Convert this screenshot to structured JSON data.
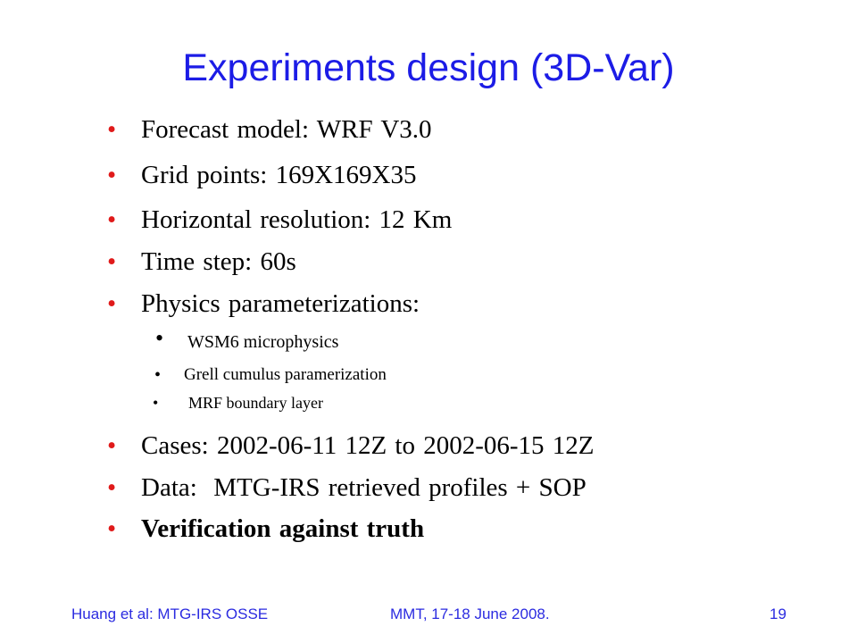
{
  "slide": {
    "title": "Experiments design (3D-Var)",
    "bullets": [
      {
        "text": "Forecast model: WRF V3.0"
      },
      {
        "text": "Grid points: 169X169X35"
      },
      {
        "text": "Horizontal resolution: 12 Km"
      },
      {
        "text": "Time step: 60s"
      },
      {
        "text": "Physics parameterizations:"
      }
    ],
    "sub_bullets": [
      {
        "text": "WSM6 microphysics"
      },
      {
        "text": "Grell cumulus paramerization"
      },
      {
        "text": "MRF boundary layer"
      }
    ],
    "bullets_after": [
      {
        "text": "Cases: 2002-06-11 12Z to 2002-06-15 12Z"
      },
      {
        "text": "Data:  MTG-IRS retrieved profiles + SOP"
      },
      {
        "text": "Verification against truth"
      }
    ],
    "bullet_glyph": "•"
  },
  "footer": {
    "left": "Huang et al: MTG-IRS OSSE",
    "center": "MMT, 17-18 June 2008.",
    "page_number": "19"
  },
  "colors": {
    "title": "#1c1ce6",
    "bullet_dot": "#e01a1a",
    "footer": "#2b2be0",
    "text": "#000000"
  }
}
